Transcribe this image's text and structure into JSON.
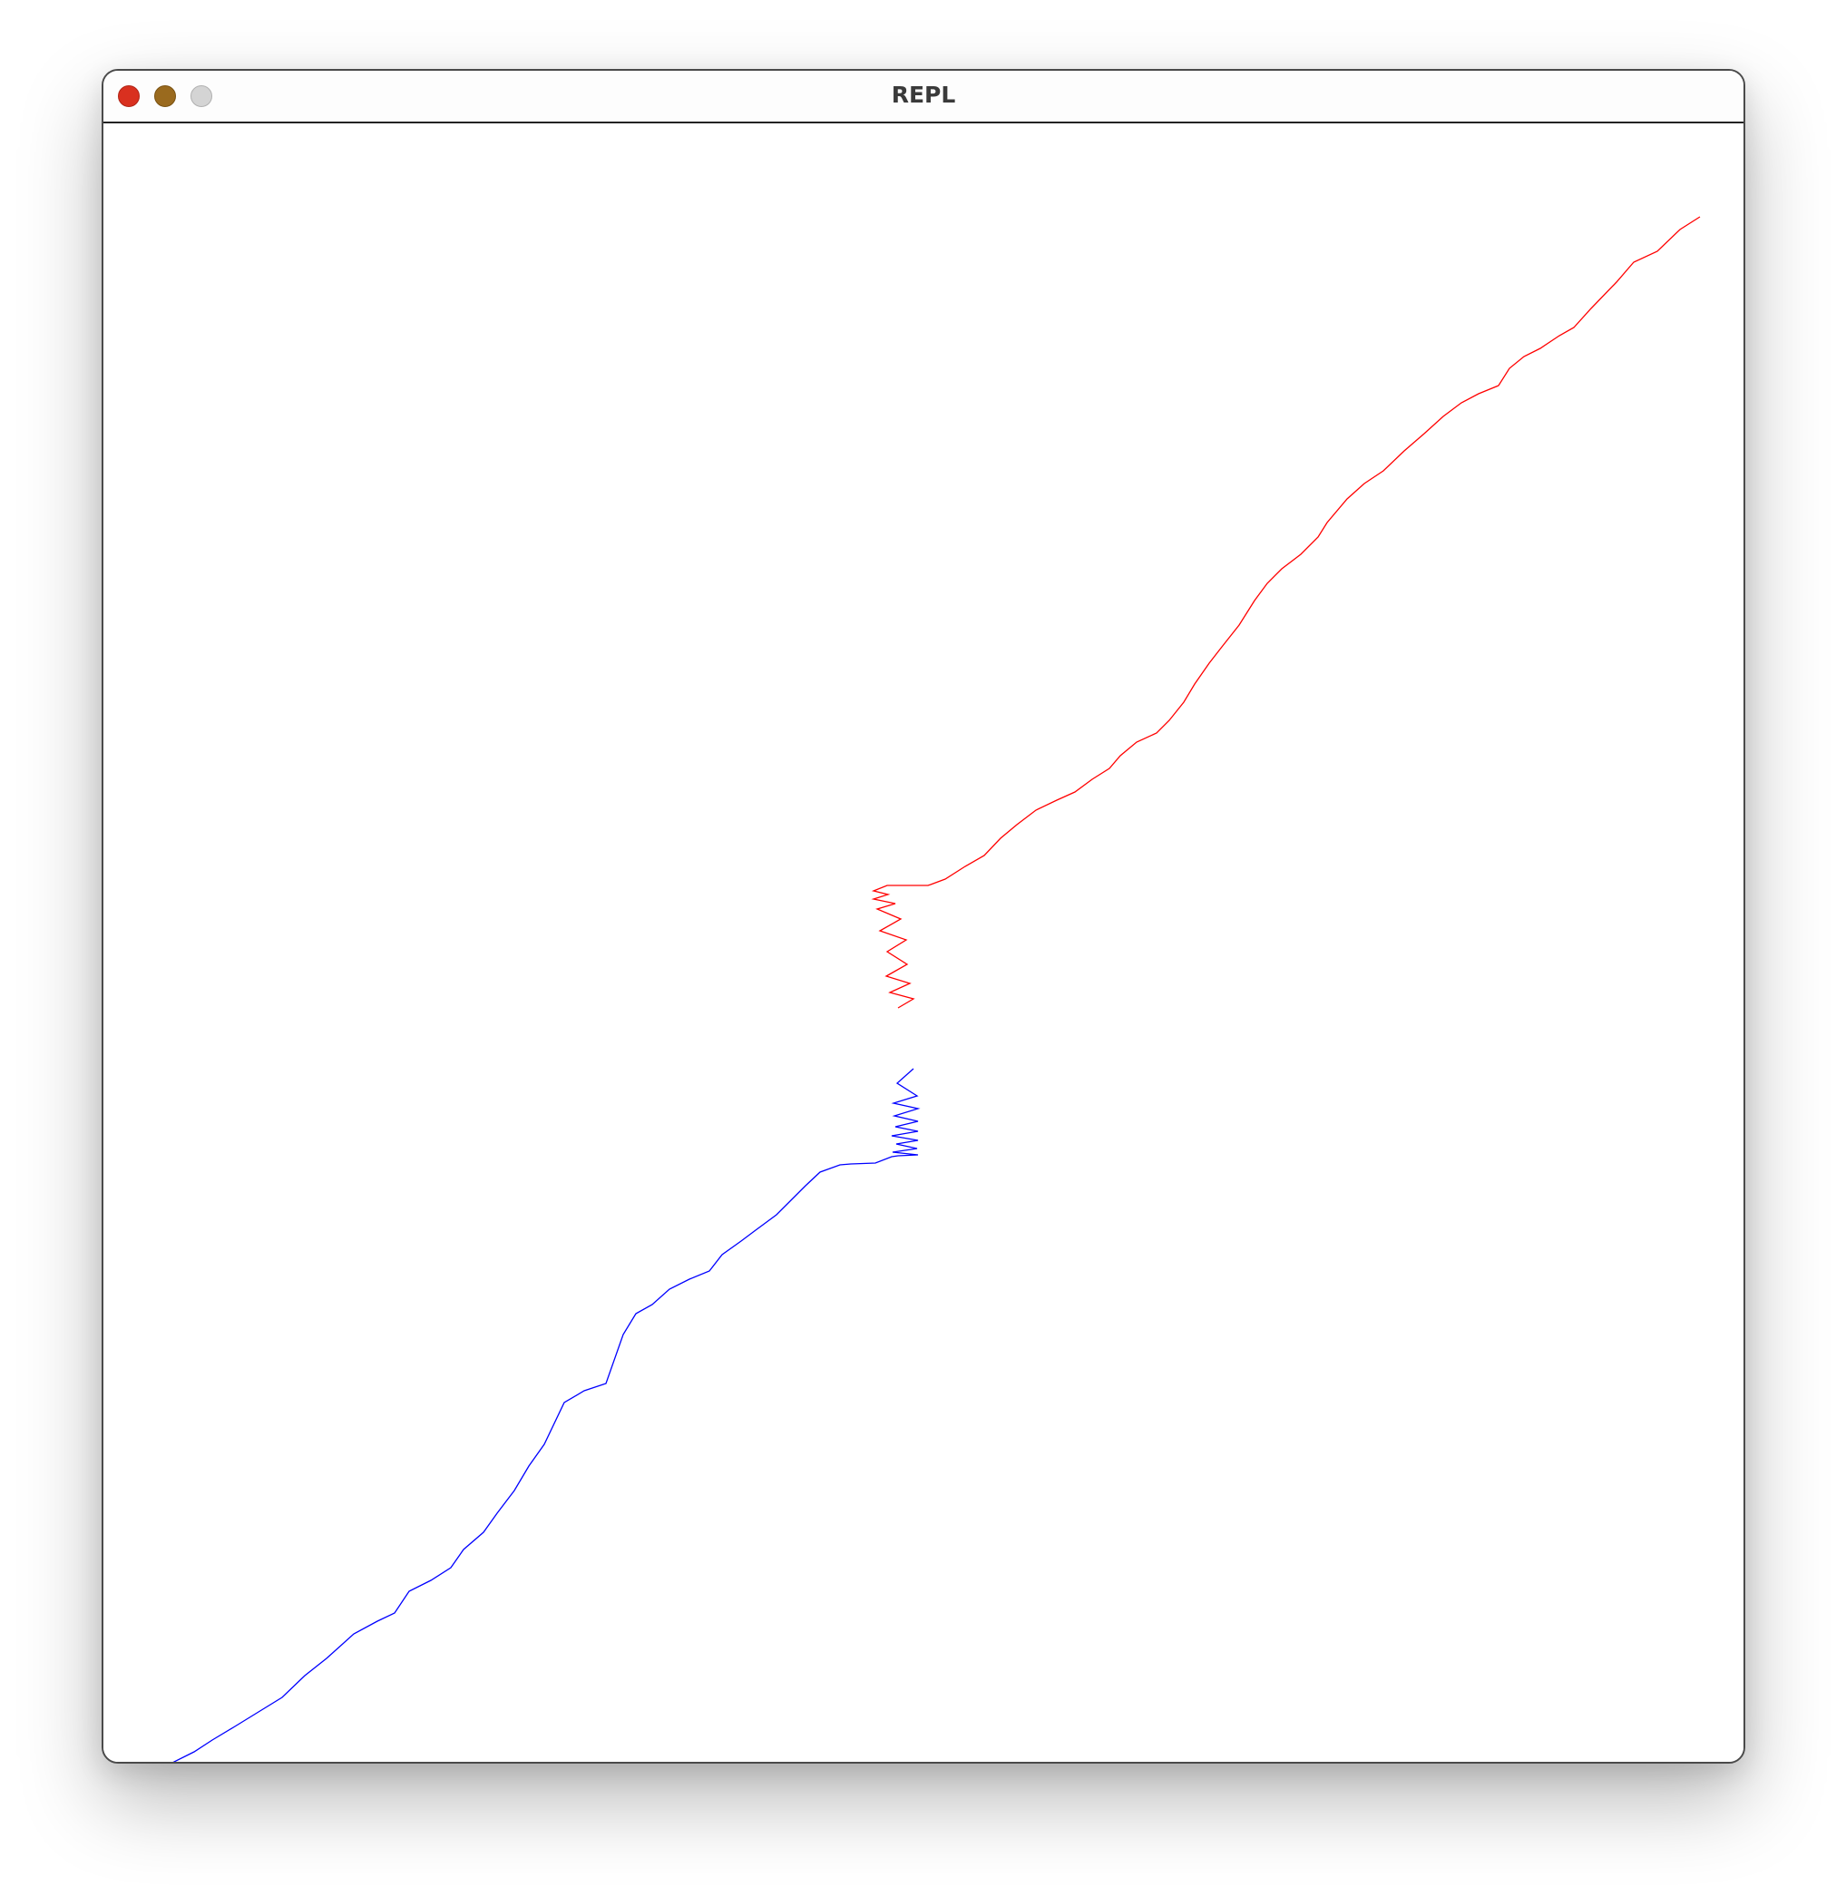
{
  "window": {
    "title": "REPL",
    "controls": {
      "close": "close-icon",
      "minimize": "minimize-icon",
      "maximize": "maximize-icon"
    }
  },
  "colors": {
    "close": "#d9301f",
    "minimize": "#9a6a1e",
    "maximize": "#d4d4d4",
    "red_trace": "#ff0000",
    "blue_trace": "#0000ff"
  },
  "traces": [
    {
      "name": "red-trace",
      "color": "#ff0000",
      "points": [
        [
          1760,
          103
        ],
        [
          1738,
          117
        ],
        [
          1713,
          141
        ],
        [
          1687,
          153
        ],
        [
          1668,
          175
        ],
        [
          1640,
          204
        ],
        [
          1621,
          225
        ],
        [
          1605,
          234
        ],
        [
          1584,
          248
        ],
        [
          1566,
          257
        ],
        [
          1550,
          270
        ],
        [
          1538,
          289
        ],
        [
          1516,
          298
        ],
        [
          1497,
          308
        ],
        [
          1477,
          323
        ],
        [
          1456,
          342
        ],
        [
          1434,
          361
        ],
        [
          1411,
          383
        ],
        [
          1390,
          397
        ],
        [
          1371,
          414
        ],
        [
          1349,
          440
        ],
        [
          1339,
          456
        ],
        [
          1320,
          475
        ],
        [
          1299,
          491
        ],
        [
          1283,
          507
        ],
        [
          1269,
          526
        ],
        [
          1252,
          553
        ],
        [
          1233,
          577
        ],
        [
          1219,
          595
        ],
        [
          1203,
          618
        ],
        [
          1191,
          638
        ],
        [
          1175,
          658
        ],
        [
          1161,
          672
        ],
        [
          1139,
          682
        ],
        [
          1121,
          697
        ],
        [
          1109,
          711
        ],
        [
          1090,
          723
        ],
        [
          1071,
          737
        ],
        [
          1051,
          746
        ],
        [
          1028,
          757
        ],
        [
          1007,
          773
        ],
        [
          989,
          788
        ],
        [
          971,
          807
        ],
        [
          950,
          819
        ],
        [
          928,
          833
        ],
        [
          912,
          839
        ],
        [
          909,
          840
        ],
        [
          898,
          840
        ],
        [
          896,
          840
        ],
        [
          886,
          840
        ],
        [
          874,
          840
        ],
        [
          864,
          840
        ],
        [
          849,
          846
        ],
        [
          865,
          850
        ],
        [
          849,
          855
        ],
        [
          873,
          860
        ],
        [
          853,
          866
        ],
        [
          879,
          877
        ],
        [
          856,
          890
        ],
        [
          885,
          900
        ],
        [
          864,
          913
        ],
        [
          886,
          927
        ],
        [
          863,
          940
        ],
        [
          889,
          948
        ],
        [
          867,
          958
        ],
        [
          893,
          965
        ],
        [
          876,
          975
        ]
      ]
    },
    {
      "name": "blue-trace",
      "color": "#0000ff",
      "points": [
        [
          893,
          1042
        ],
        [
          875,
          1058
        ],
        [
          897,
          1072
        ],
        [
          871,
          1080
        ],
        [
          898,
          1086
        ],
        [
          872,
          1094
        ],
        [
          898,
          1100
        ],
        [
          873,
          1106
        ],
        [
          898,
          1111
        ],
        [
          869,
          1116
        ],
        [
          898,
          1121
        ],
        [
          874,
          1125
        ],
        [
          897,
          1130
        ],
        [
          870,
          1134
        ],
        [
          898,
          1137
        ],
        [
          876,
          1138
        ],
        [
          869,
          1139
        ],
        [
          851,
          1146
        ],
        [
          824,
          1147
        ],
        [
          812,
          1148
        ],
        [
          790,
          1156
        ],
        [
          774,
          1171
        ],
        [
          754,
          1191
        ],
        [
          742,
          1203
        ],
        [
          719,
          1220
        ],
        [
          703,
          1232
        ],
        [
          682,
          1247
        ],
        [
          668,
          1265
        ],
        [
          646,
          1274
        ],
        [
          624,
          1285
        ],
        [
          605,
          1302
        ],
        [
          587,
          1312
        ],
        [
          573,
          1335
        ],
        [
          554,
          1389
        ],
        [
          530,
          1397
        ],
        [
          508,
          1410
        ],
        [
          486,
          1456
        ],
        [
          469,
          1480
        ],
        [
          453,
          1507
        ],
        [
          434,
          1532
        ],
        [
          419,
          1553
        ],
        [
          397,
          1572
        ],
        [
          383,
          1592
        ],
        [
          361,
          1606
        ],
        [
          337,
          1618
        ],
        [
          321,
          1642
        ],
        [
          302,
          1651
        ],
        [
          276,
          1665
        ],
        [
          246,
          1692
        ],
        [
          222,
          1711
        ],
        [
          197,
          1735
        ],
        [
          171,
          1751
        ],
        [
          145,
          1767
        ],
        [
          120,
          1782
        ],
        [
          100,
          1795
        ],
        [
          72,
          1809
        ]
      ]
    }
  ]
}
